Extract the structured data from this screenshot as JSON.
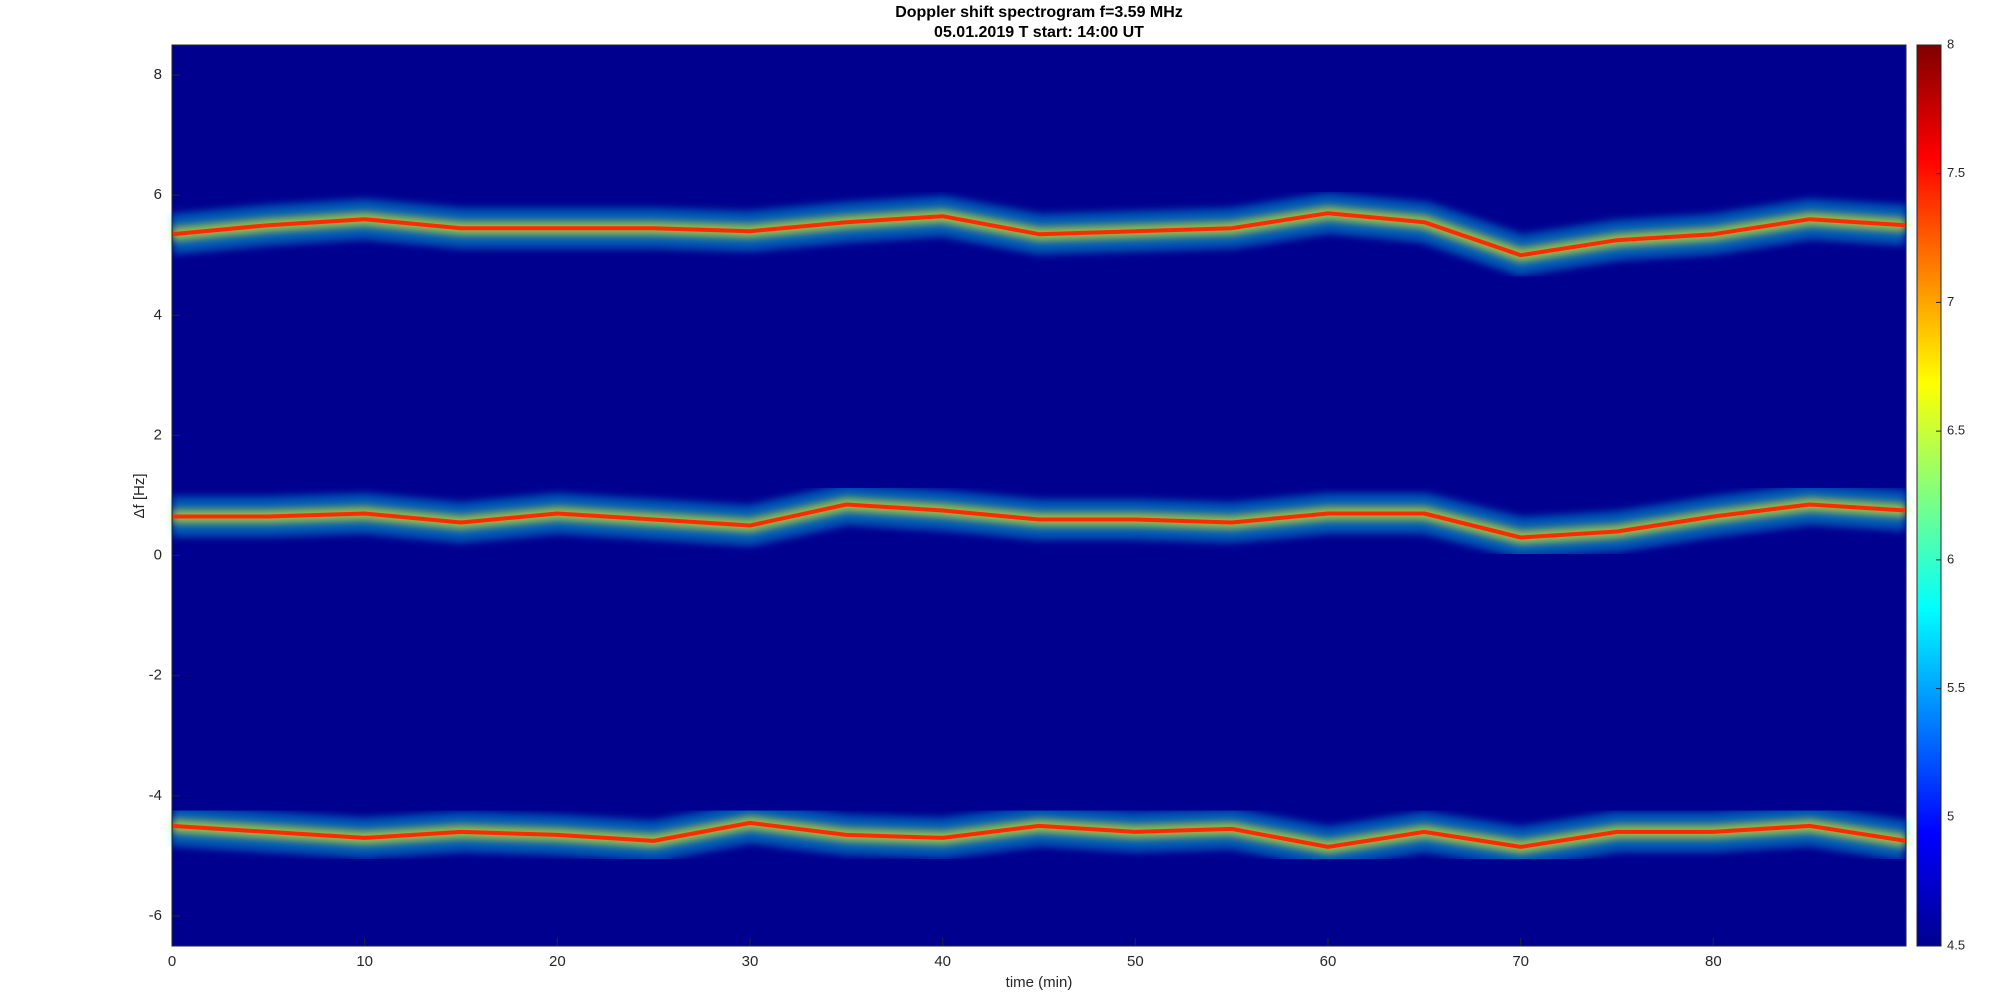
{
  "chart_data": {
    "type": "spectrogram",
    "title": "Doppler shift spectrogram f=3.59 MHz",
    "subtitle": "05.01.2019   T start: 14:00 UT",
    "xlabel": "time (min)",
    "ylabel": "Δf [Hz]",
    "x": [
      0,
      5,
      10,
      15,
      20,
      25,
      30,
      35,
      40,
      45,
      50,
      55,
      60,
      65,
      70,
      75,
      80,
      85,
      90
    ],
    "series": [
      {
        "color": "#ff2a00",
        "values": [
          5.35,
          5.5,
          5.6,
          5.45,
          5.45,
          5.45,
          5.4,
          5.55,
          5.65,
          5.35,
          5.4,
          5.45,
          5.7,
          5.55,
          5.0,
          5.25,
          5.35,
          5.6,
          5.5
        ]
      },
      {
        "color": "#ff2a00",
        "values": [
          0.65,
          0.65,
          0.7,
          0.55,
          0.7,
          0.6,
          0.5,
          0.85,
          0.75,
          0.6,
          0.6,
          0.55,
          0.7,
          0.7,
          0.3,
          0.4,
          0.65,
          0.85,
          0.75
        ]
      },
      {
        "color": "#ff2a00",
        "values": [
          -4.5,
          -4.6,
          -4.7,
          -4.6,
          -4.65,
          -4.75,
          -4.45,
          -4.65,
          -4.7,
          -4.5,
          -4.6,
          -4.55,
          -4.85,
          -4.6,
          -4.85,
          -4.6,
          -4.6,
          -4.5,
          -4.75
        ]
      }
    ],
    "background": "#00008f",
    "xlim": [
      0,
      90
    ],
    "xticks": [
      0,
      10,
      20,
      30,
      40,
      50,
      60,
      70,
      80
    ],
    "ylim": [
      -6.5,
      8.5
    ],
    "yticks": [
      -6,
      -4,
      -2,
      0,
      2,
      4,
      6,
      8
    ],
    "clim": [
      4.5,
      8
    ],
    "cticks": [
      4.5,
      5,
      5.5,
      6,
      6.5,
      7,
      7.5,
      8
    ],
    "colormap": [
      "#00008f",
      "#0000ff",
      "#0080ff",
      "#00ffff",
      "#80ff80",
      "#ffff00",
      "#ff8000",
      "#ff0000",
      "#800000"
    ]
  }
}
